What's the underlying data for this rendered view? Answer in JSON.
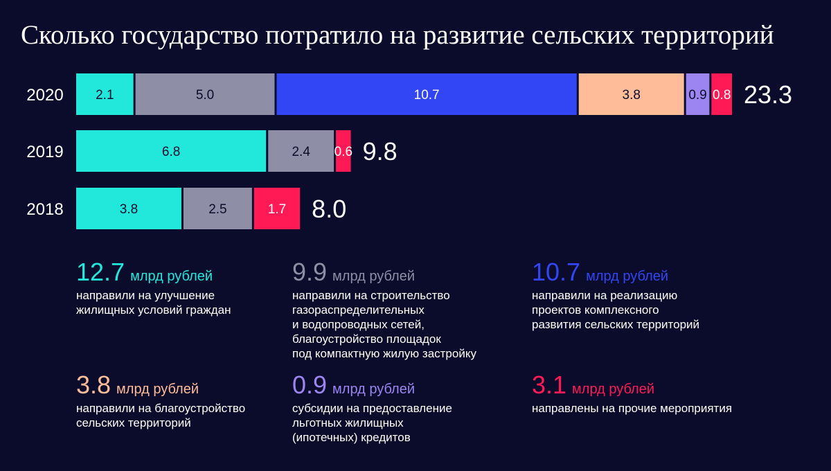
{
  "title": "Сколько государство потратило на развитие сельских территорий",
  "chart_data": {
    "type": "bar",
    "orientation": "horizontal",
    "stacked": true,
    "categories": [
      "2020",
      "2019",
      "2018"
    ],
    "series": [
      {
        "key": "housing",
        "color": "#22e8dc",
        "label_color": "#0b0b2b",
        "values": [
          2.1,
          6.8,
          3.8
        ]
      },
      {
        "key": "networks",
        "color": "#8e8fa6",
        "label_color": "#0b0b2b",
        "values": [
          5.0,
          2.4,
          2.5
        ]
      },
      {
        "key": "complex",
        "color": "#3346f5",
        "label_color": "#ffffff",
        "values": [
          10.7,
          0,
          0
        ]
      },
      {
        "key": "improvement",
        "color": "#ffbc98",
        "label_color": "#0b0b2b",
        "values": [
          3.8,
          0,
          0
        ]
      },
      {
        "key": "mortgage",
        "color": "#9c85f0",
        "label_color": "#0b0b2b",
        "values": [
          0.9,
          0,
          0
        ]
      },
      {
        "key": "other",
        "color": "#ff1a55",
        "label_color": "#ffffff",
        "values": [
          0.8,
          0.6,
          1.7
        ]
      }
    ],
    "value_labels": [
      [
        "2.1",
        "5.0",
        "10.7",
        "3.8",
        "0.9",
        "0.8"
      ],
      [
        "6.8",
        "2.4",
        "",
        "",
        "",
        "0.6"
      ],
      [
        "3.8",
        "2.5",
        "",
        "",
        "",
        "1.7"
      ]
    ],
    "totals": [
      "23.3",
      "9.8",
      "8.0"
    ],
    "xlim": [
      0,
      23.3
    ]
  },
  "legend": [
    {
      "value": "12.7",
      "unit": "млрд рублей",
      "color": "#22e8dc",
      "desc": "направили на улучшение\nжилищных условий граждан"
    },
    {
      "value": "9.9",
      "unit": "млрд рублей",
      "color": "#8e8fa6",
      "desc": "направили на строительство\nгазораспределительных\nи водопроводных сетей,\nблагоустройство площадок\nпод компактную жилую застройку"
    },
    {
      "value": "10.7",
      "unit": "млрд рублей",
      "color": "#3346f5",
      "desc": "направили на реализацию\nпроектов комплексного\nразвития сельских территорий"
    },
    {
      "value": "3.8",
      "unit": "млрд рублей",
      "color": "#ffbc98",
      "desc": "направили на благоустройство\nсельских территорий"
    },
    {
      "value": "0.9",
      "unit": "млрд рублей",
      "color": "#9c85f0",
      "desc": "субсидии на предоставление\nльготных жилищных\n(ипотечных) кредитов"
    },
    {
      "value": "3.1",
      "unit": "млрд рублей",
      "color": "#ff1a55",
      "desc": "направлены на прочие мероприятия"
    }
  ]
}
